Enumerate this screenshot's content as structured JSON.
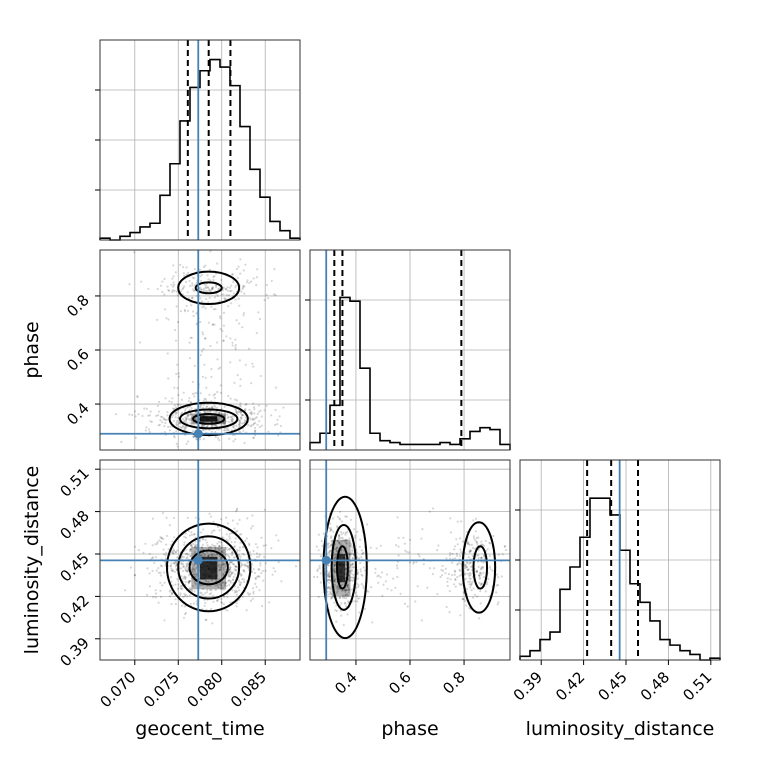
{
  "chart_data": {
    "type": "corner",
    "parameters": [
      "geocent_time",
      "phase",
      "luminosity_distance"
    ],
    "truths": {
      "geocent_time": 0.0773,
      "phase": 0.29,
      "luminosity_distance": 0.4455
    },
    "truth_color": "#4682b4",
    "ranges": {
      "geocent_time": [
        0.066,
        0.089
      ],
      "phase": [
        0.23,
        0.97
      ],
      "luminosity_distance": [
        0.375,
        0.5165
      ]
    },
    "ticks": {
      "geocent_time": {
        "values": [
          0.07,
          0.075,
          0.08,
          0.085
        ],
        "labels": [
          "0.070",
          "0.075",
          "0.080",
          "0.085"
        ]
      },
      "phase": {
        "values": [
          0.4,
          0.6,
          0.8
        ],
        "labels": [
          "0.4",
          "0.6",
          "0.8"
        ]
      },
      "luminosity_distance": {
        "values": [
          0.39,
          0.42,
          0.45,
          0.48,
          0.51
        ],
        "labels": [
          "0.39",
          "0.42",
          "0.45",
          "0.48",
          "0.51"
        ]
      }
    },
    "quantiles": {
      "geocent_time": [
        0.0761,
        0.0785,
        0.081
      ],
      "phase": [
        0.32,
        0.35,
        0.79
      ],
      "luminosity_distance": [
        0.4225,
        0.4395,
        0.4585
      ]
    },
    "histograms": {
      "geocent_time": [
        0.01,
        0.0,
        0.02,
        0.04,
        0.07,
        0.09,
        0.24,
        0.41,
        0.64,
        0.82,
        0.91,
        0.97,
        0.93,
        0.83,
        0.61,
        0.38,
        0.23,
        0.1,
        0.05,
        0.01
      ],
      "phase": [
        0.04,
        0.09,
        0.24,
        0.82,
        0.8,
        0.44,
        0.09,
        0.05,
        0.04,
        0.03,
        0.03,
        0.03,
        0.03,
        0.04,
        0.03,
        0.06,
        0.1,
        0.12,
        0.11,
        0.03
      ],
      "luminosity_distance": [
        0.02,
        0.05,
        0.11,
        0.15,
        0.38,
        0.5,
        0.66,
        0.87,
        0.87,
        0.78,
        0.59,
        0.41,
        0.31,
        0.21,
        0.11,
        0.08,
        0.05,
        0.03,
        0.0,
        0.01
      ]
    },
    "grid": true
  }
}
